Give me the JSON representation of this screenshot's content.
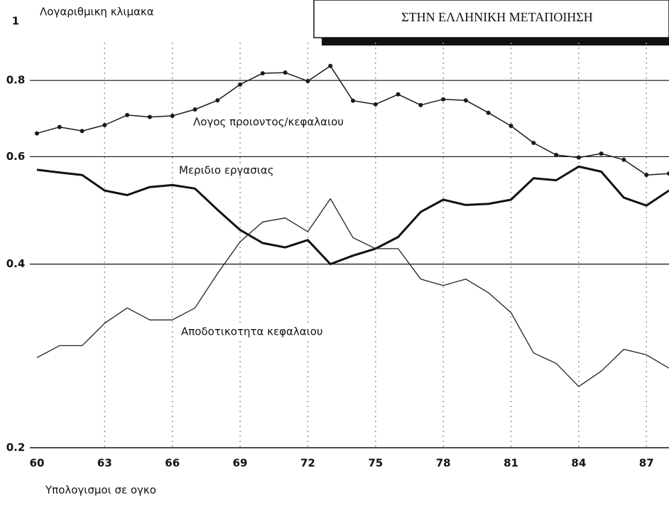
{
  "chart_data": {
    "type": "line",
    "title": "ΣΤΗΝ ΕΛΛΗΝΙΚΗ ΜΕΤΑΠΟΙΗΣΗ",
    "y_label": "Λογαριθμικη κλιμακα",
    "x_label": "Υπολογισμοι σε ογκο",
    "log_y": true,
    "x": [
      60,
      61,
      62,
      63,
      64,
      65,
      66,
      67,
      68,
      69,
      70,
      71,
      72,
      73,
      74,
      75,
      76,
      77,
      78,
      79,
      80,
      81,
      82,
      83,
      84,
      85,
      86,
      87,
      88
    ],
    "xlim": [
      60,
      88
    ],
    "xticks": [
      60,
      63,
      66,
      69,
      72,
      75,
      78,
      81,
      84,
      87
    ],
    "ylim": [
      0.2,
      1
    ],
    "yticks": [
      0.2,
      0.4,
      0.6,
      0.8,
      1
    ],
    "grid": true,
    "series": [
      {
        "name": "Λογος προιοντος/κεφαλαιου",
        "color": "#1a1a1a",
        "markers": true,
        "width": 1.5,
        "values": [
          0.655,
          0.671,
          0.661,
          0.676,
          0.702,
          0.697,
          0.7,
          0.717,
          0.742,
          0.788,
          0.822,
          0.824,
          0.798,
          0.845,
          0.741,
          0.731,
          0.759,
          0.729,
          0.745,
          0.742,
          0.708,
          0.674,
          0.632,
          0.604,
          0.598,
          0.607,
          0.593,
          0.56,
          0.563
        ]
      },
      {
        "name": "Μεριδιο εργασιας",
        "color": "#111111",
        "markers": false,
        "width": 3,
        "values": [
          0.571,
          0.565,
          0.56,
          0.528,
          0.519,
          0.535,
          0.539,
          0.532,
          0.491,
          0.455,
          0.433,
          0.426,
          0.438,
          0.4,
          0.413,
          0.424,
          0.443,
          0.487,
          0.51,
          0.5,
          0.502,
          0.51,
          0.553,
          0.549,
          0.578,
          0.567,
          0.514,
          0.499,
          0.528
        ]
      },
      {
        "name": "Αποδοτικοτητα κεφαλαιου",
        "color": "#222222",
        "markers": false,
        "width": 1.3,
        "values": [
          0.281,
          0.294,
          0.294,
          0.32,
          0.339,
          0.324,
          0.324,
          0.339,
          0.386,
          0.435,
          0.469,
          0.476,
          0.452,
          0.512,
          0.442,
          0.424,
          0.424,
          0.378,
          0.369,
          0.378,
          0.359,
          0.333,
          0.286,
          0.275,
          0.252,
          0.267,
          0.29,
          0.284,
          0.27
        ]
      }
    ]
  }
}
